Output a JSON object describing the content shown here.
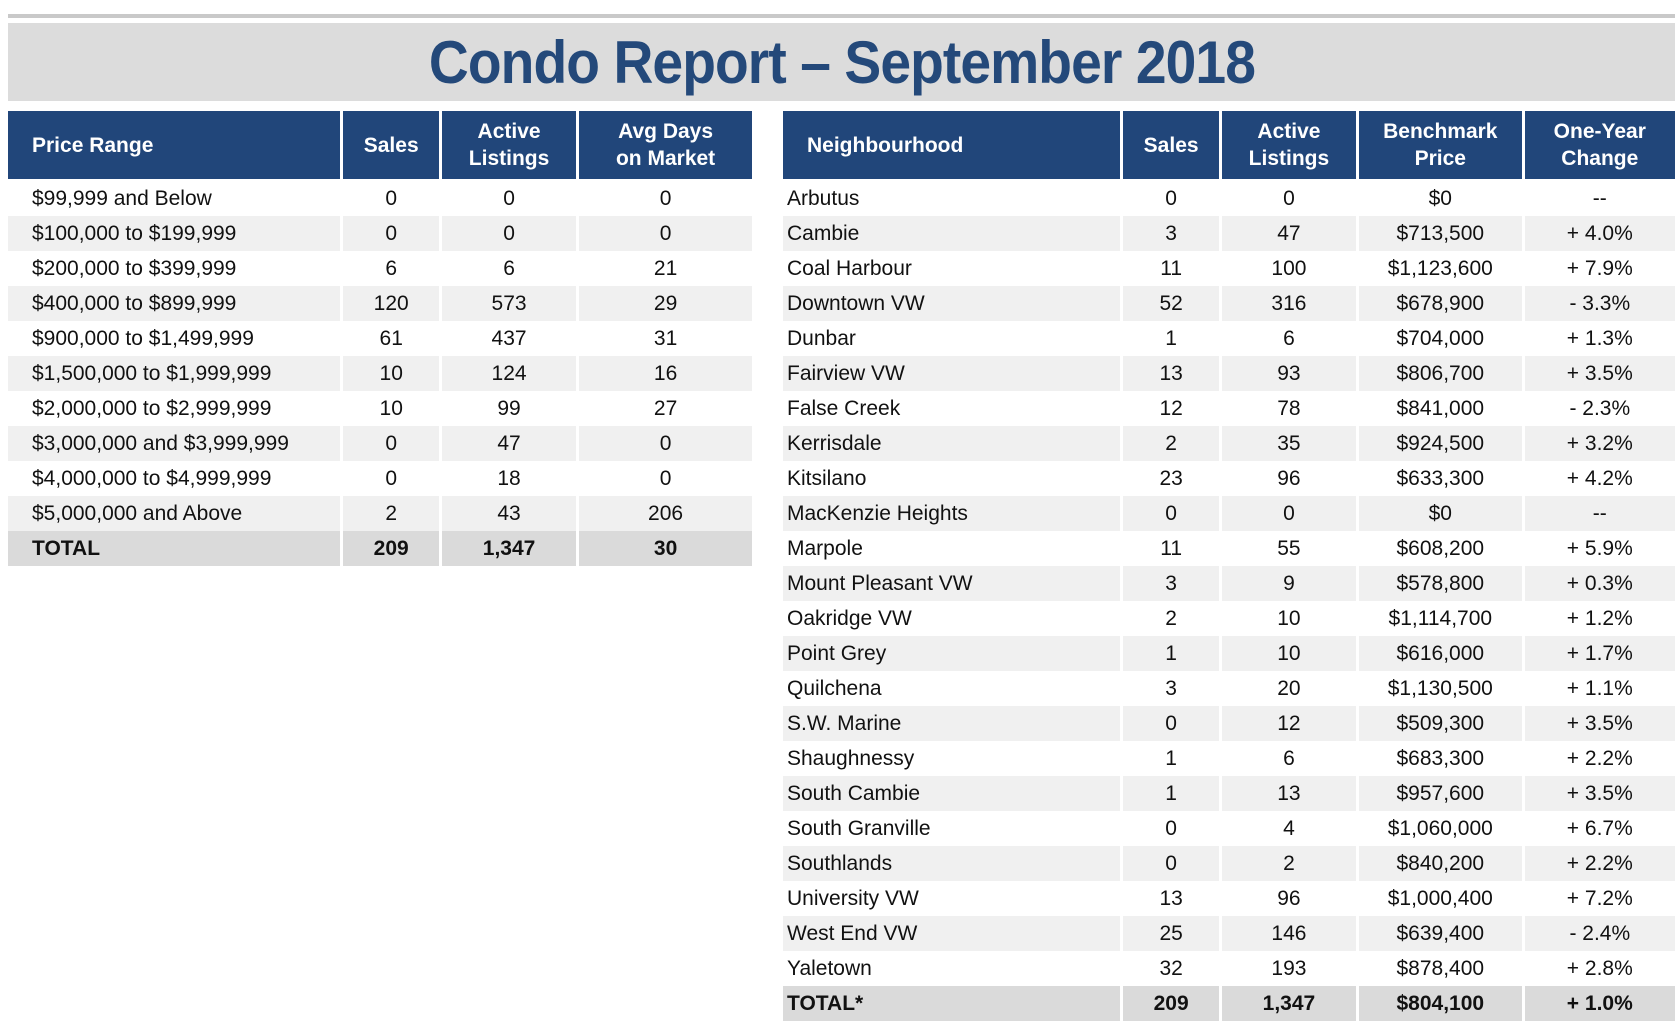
{
  "title": "Condo Report – September 2018",
  "price_table": {
    "headers": [
      "Price Range",
      "Sales",
      "Active Listings",
      "Avg Days on Market"
    ],
    "rows": [
      [
        "$99,999 and Below",
        "0",
        "0",
        "0"
      ],
      [
        "$100,000 to $199,999",
        "0",
        "0",
        "0"
      ],
      [
        "$200,000 to $399,999",
        "6",
        "6",
        "21"
      ],
      [
        "$400,000 to $899,999",
        "120",
        "573",
        "29"
      ],
      [
        "$900,000 to $1,499,999",
        "61",
        "437",
        "31"
      ],
      [
        "$1,500,000 to $1,999,999",
        "10",
        "124",
        "16"
      ],
      [
        "$2,000,000 to $2,999,999",
        "10",
        "99",
        "27"
      ],
      [
        "$3,000,000 and $3,999,999",
        "0",
        "47",
        "0"
      ],
      [
        "$4,000,000 to $4,999,999",
        "0",
        "18",
        "0"
      ],
      [
        "$5,000,000 and Above",
        "2",
        "43",
        "206"
      ]
    ],
    "total": [
      "TOTAL",
      "209",
      "1,347",
      "30"
    ]
  },
  "neighbourhood_table": {
    "headers": [
      "Neighbourhood",
      "Sales",
      "Active Listings",
      "Benchmark Price",
      "One-Year Change"
    ],
    "rows": [
      [
        "Arbutus",
        "0",
        "0",
        "$0",
        "--"
      ],
      [
        "Cambie",
        "3",
        "47",
        "$713,500",
        "+ 4.0%"
      ],
      [
        "Coal Harbour",
        "11",
        "100",
        "$1,123,600",
        "+ 7.9%"
      ],
      [
        "Downtown VW",
        "52",
        "316",
        "$678,900",
        "- 3.3%"
      ],
      [
        "Dunbar",
        "1",
        "6",
        "$704,000",
        "+ 1.3%"
      ],
      [
        "Fairview VW",
        "13",
        "93",
        "$806,700",
        "+ 3.5%"
      ],
      [
        "False Creek",
        "12",
        "78",
        "$841,000",
        "- 2.3%"
      ],
      [
        "Kerrisdale",
        "2",
        "35",
        "$924,500",
        "+ 3.2%"
      ],
      [
        "Kitsilano",
        "23",
        "96",
        "$633,300",
        "+ 4.2%"
      ],
      [
        "MacKenzie Heights",
        "0",
        "0",
        "$0",
        "--"
      ],
      [
        "Marpole",
        "11",
        "55",
        "$608,200",
        "+ 5.9%"
      ],
      [
        "Mount Pleasant VW",
        "3",
        "9",
        "$578,800",
        "+ 0.3%"
      ],
      [
        "Oakridge VW",
        "2",
        "10",
        "$1,114,700",
        "+ 1.2%"
      ],
      [
        "Point Grey",
        "1",
        "10",
        "$616,000",
        "+ 1.7%"
      ],
      [
        "Quilchena",
        "3",
        "20",
        "$1,130,500",
        "+ 1.1%"
      ],
      [
        "S.W. Marine",
        "0",
        "12",
        "$509,300",
        "+ 3.5%"
      ],
      [
        "Shaughnessy",
        "1",
        "6",
        "$683,300",
        "+ 2.2%"
      ],
      [
        "South Cambie",
        "1",
        "13",
        "$957,600",
        "+ 3.5%"
      ],
      [
        "South Granville",
        "0",
        "4",
        "$1,060,000",
        "+ 6.7%"
      ],
      [
        "Southlands",
        "0",
        "2",
        "$840,200",
        "+ 2.2%"
      ],
      [
        "University VW",
        "13",
        "96",
        "$1,000,400",
        "+ 7.2%"
      ],
      [
        "West End VW",
        "25",
        "146",
        "$639,400",
        "- 2.4%"
      ],
      [
        "Yaletown",
        "32",
        "193",
        "$878,400",
        "+ 2.8%"
      ]
    ],
    "total": [
      "TOTAL*",
      "209",
      "1,347",
      "$804,100",
      "+ 1.0%"
    ]
  }
}
